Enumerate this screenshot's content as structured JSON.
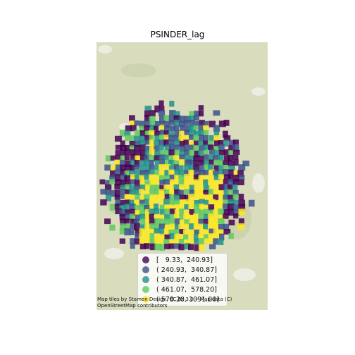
{
  "title": "PSINDER_lag",
  "legend": {
    "items": [
      {
        "label": "[   9.33,  240.93]",
        "color": "#440154"
      },
      {
        "label": "( 240.93,  340.87]",
        "color": "#3b528b"
      },
      {
        "label": "( 340.87,  461.07]",
        "color": "#21918c"
      },
      {
        "label": "( 461.07,  578.20]",
        "color": "#5ec962"
      },
      {
        "label": "( 578.20, 1091.00]",
        "color": "#fde725"
      }
    ]
  },
  "attribution": {
    "line1": "Map tiles by Stamen Design, CC BY 3.0 -- Map data (C)",
    "line2": "OpenStreetMap contributors"
  },
  "basemap": {
    "land_color": "#dcdfc1",
    "water_color": "#f2f2ee"
  }
}
